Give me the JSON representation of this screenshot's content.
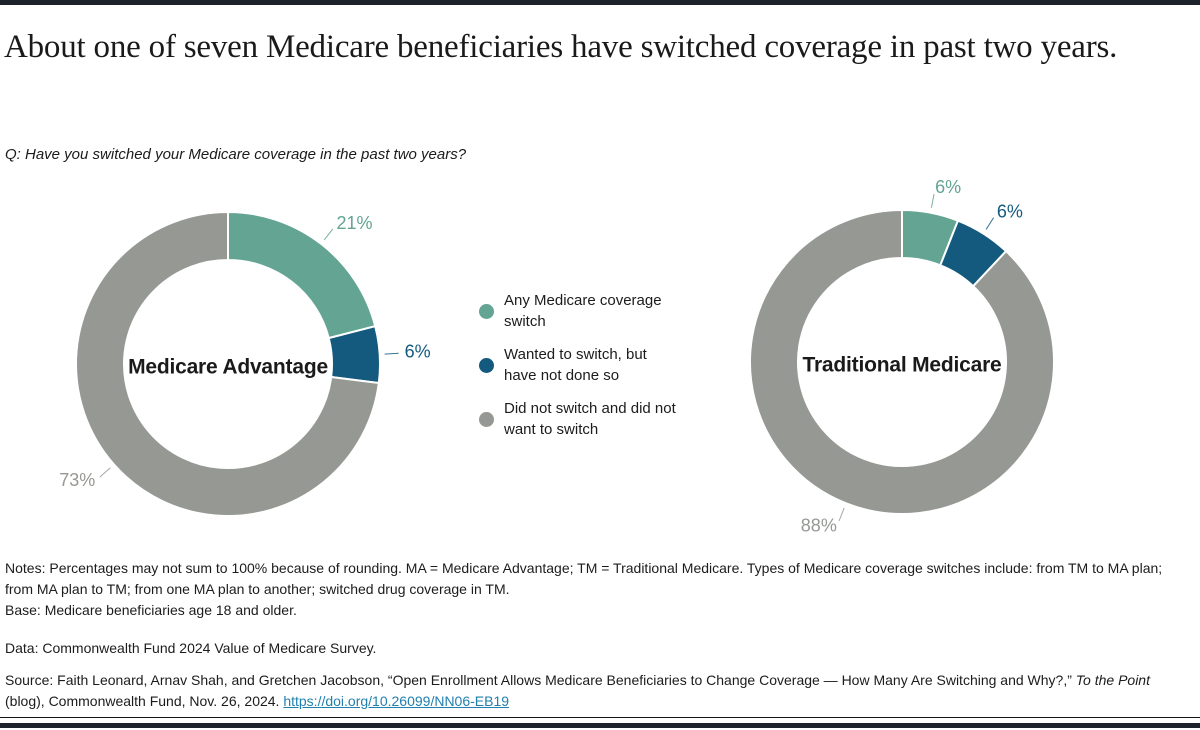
{
  "page": {
    "title": "About one of seven Medicare beneficiaries have switched coverage in past two years.",
    "question": "Q: Have you switched your Medicare coverage in the past two years?"
  },
  "colors": {
    "teal": "#63a492",
    "blue": "#135a7e",
    "gray": "#959893",
    "link_blue": "#2180ae",
    "rule_bar_dark": "#1e222b"
  },
  "legend": {
    "items": [
      {
        "label": "Any Medicare coverage switch",
        "color": "#63a492"
      },
      {
        "label": "Wanted to switch, but have not done so",
        "color": "#135a7e"
      },
      {
        "label": "Did not switch and did not want to switch",
        "color": "#959893"
      }
    ]
  },
  "chart_data": [
    {
      "type": "pie",
      "style": "donut",
      "center_label": "Medicare Advantage",
      "categories": [
        "Any Medicare coverage switch",
        "Wanted to switch, but have not done so",
        "Did not switch and did not want to switch"
      ],
      "values": [
        21,
        6,
        73
      ],
      "unit": "%",
      "colors": [
        "#63a492",
        "#135a7e",
        "#959893"
      ],
      "start_angle_deg": 0,
      "direction": "clockwise",
      "legend_position": "between-charts"
    },
    {
      "type": "pie",
      "style": "donut",
      "center_label": "Traditional Medicare",
      "categories": [
        "Any Medicare coverage switch",
        "Wanted to switch, but have not done so",
        "Did not switch and did not want to switch"
      ],
      "values": [
        6,
        6,
        88
      ],
      "unit": "%",
      "colors": [
        "#63a492",
        "#135a7e",
        "#959893"
      ],
      "start_angle_deg": 0,
      "direction": "clockwise",
      "legend_position": "between-charts"
    }
  ],
  "notes": {
    "notes_line": "Notes: Percentages may not sum to 100% because of rounding. MA = Medicare Advantage; TM = Traditional Medicare. Types of Medicare coverage switches include: from TM to MA plan; from MA plan to TM; from one MA plan to another; switched drug coverage in TM.",
    "base_line": "Base: Medicare beneficiaries age 18 and older.",
    "data_line": "Data: Commonwealth Fund 2024 Value of Medicare Survey."
  },
  "source": {
    "prefix": "Source: Faith Leonard, Arnav Shah, and Gretchen Jacobson, “Open Enrollment Allows Medicare Beneficiaries to Change Coverage — How Many Are Switching and Why?,” ",
    "italic": "To the Point",
    "suffix": " (blog), Commonwealth Fund, Nov. 26, 2024. ",
    "link_text": "https://doi.org/10.26099/NN06-EB19"
  }
}
